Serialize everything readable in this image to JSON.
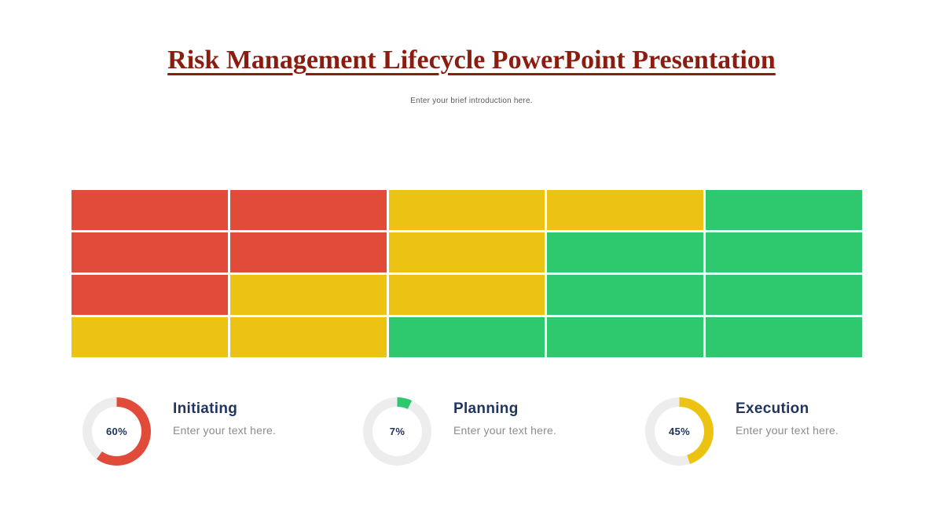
{
  "title": "Risk Management Lifecycle PowerPoint Presentation",
  "subtitle": "Enter your brief introduction here.",
  "colors": {
    "maroon": "#8B1D10",
    "navy": "#20355F",
    "subtitle_gray": "#5A5A5A",
    "desc_gray": "#8C8C8C",
    "red": "#E04B3A",
    "yellow": "#EDC313",
    "green": "#2EC86F",
    "track": "#EDEDED"
  },
  "chart_data": [
    {
      "type": "heatmap",
      "title": "",
      "rows": 4,
      "cols": 5,
      "cell_colors": [
        [
          "red",
          "red",
          "yellow",
          "yellow",
          "green"
        ],
        [
          "red",
          "red",
          "yellow",
          "green",
          "green"
        ],
        [
          "red",
          "yellow",
          "yellow",
          "green",
          "green"
        ],
        [
          "yellow",
          "yellow",
          "green",
          "green",
          "green"
        ]
      ],
      "color_map": {
        "red": "#E04B3A",
        "yellow": "#EDC313",
        "green": "#2EC86F"
      },
      "gridline_color": "#FFFFFF",
      "legend": "none",
      "axis_labels": "none"
    },
    {
      "type": "pie",
      "subtype": "donut-gauges",
      "track_color": "#EDEDED",
      "series": [
        {
          "name": "Initiating",
          "value": 60,
          "color": "#E04B3A"
        },
        {
          "name": "Planning",
          "value": 7,
          "color": "#2EC86F"
        },
        {
          "name": "Execution",
          "value": 45,
          "color": "#EDC313"
        }
      ]
    }
  ],
  "stats": [
    {
      "label": "Initiating",
      "percent": 60,
      "percent_label": "60%",
      "color": "#E04B3A",
      "description": "Enter your text here."
    },
    {
      "label": "Planning",
      "percent": 7,
      "percent_label": "7%",
      "color": "#2EC86F",
      "description": "Enter your text here."
    },
    {
      "label": "Execution",
      "percent": 45,
      "percent_label": "45%",
      "color": "#EDC313",
      "description": "Enter your text here."
    }
  ]
}
